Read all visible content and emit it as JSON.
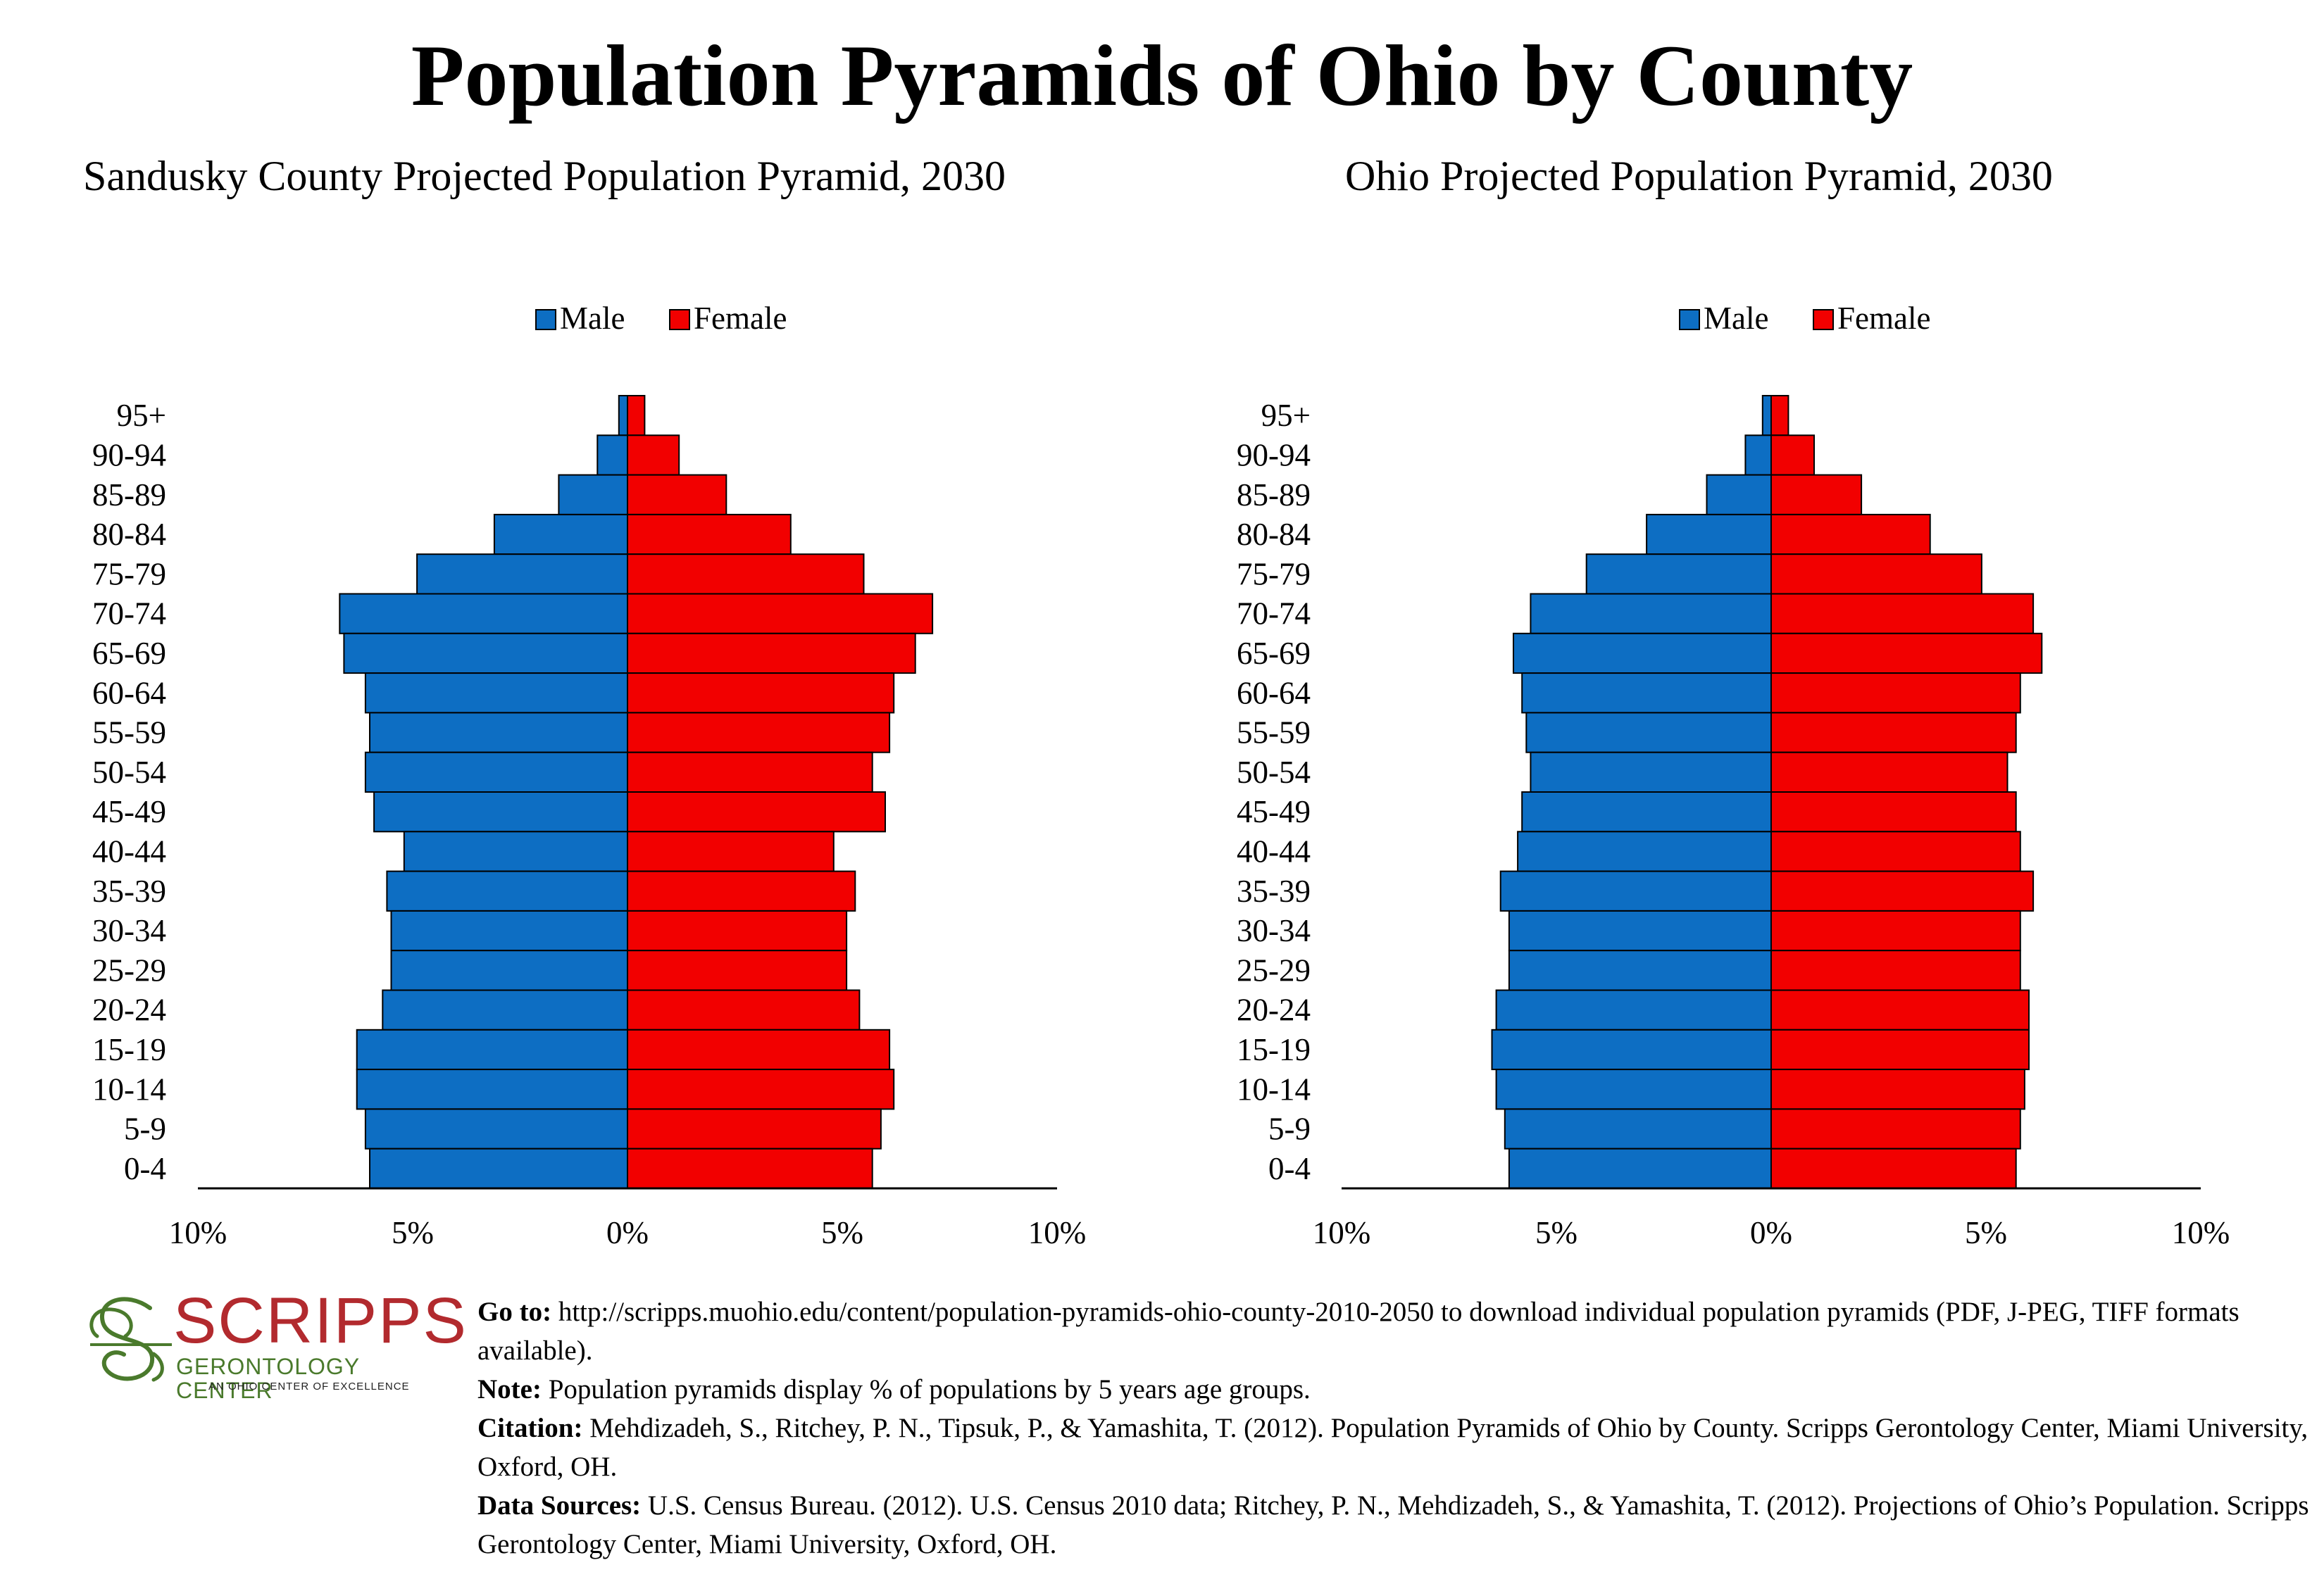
{
  "title": "Population Pyramids of Ohio by County",
  "colors": {
    "male": "#0d6ec3",
    "female": "#f20000",
    "logo_red": "#b22a2e",
    "logo_green": "#4a7a2c"
  },
  "chart_data": [
    {
      "type": "bar",
      "orientation": "horizontal-pyramid",
      "title": "Sandusky County Projected Population Pyramid, 2030",
      "legend": {
        "placement": "top-center",
        "entries": [
          "Male",
          "Female"
        ]
      },
      "categories": [
        "95+",
        "90-94",
        "85-89",
        "80-84",
        "75-79",
        "70-74",
        "65-69",
        "60-64",
        "55-59",
        "50-54",
        "45-49",
        "40-44",
        "35-39",
        "30-34",
        "25-29",
        "20-24",
        "15-19",
        "10-14",
        "5-9",
        "0-4"
      ],
      "series": [
        {
          "name": "Male",
          "values": [
            0.2,
            0.7,
            1.6,
            3.1,
            4.9,
            6.7,
            6.6,
            6.1,
            6.0,
            6.1,
            5.9,
            5.2,
            5.6,
            5.5,
            5.5,
            5.7,
            6.3,
            6.3,
            6.1,
            6.0
          ]
        },
        {
          "name": "Female",
          "values": [
            0.4,
            1.2,
            2.3,
            3.8,
            5.5,
            7.1,
            6.7,
            6.2,
            6.1,
            5.7,
            6.0,
            4.8,
            5.3,
            5.1,
            5.1,
            5.4,
            6.1,
            6.2,
            5.9,
            5.7
          ]
        }
      ],
      "xlim": [
        -10,
        10
      ],
      "xticks": [
        "10%",
        "5%",
        "0%",
        "5%",
        "10%"
      ],
      "grid": false
    },
    {
      "type": "bar",
      "orientation": "horizontal-pyramid",
      "title": "Ohio Projected Population Pyramid, 2030",
      "legend": {
        "placement": "top-center",
        "entries": [
          "Male",
          "Female"
        ]
      },
      "categories": [
        "95+",
        "90-94",
        "85-89",
        "80-84",
        "75-79",
        "70-74",
        "65-69",
        "60-64",
        "55-59",
        "50-54",
        "45-49",
        "40-44",
        "35-39",
        "30-34",
        "25-29",
        "20-24",
        "15-19",
        "10-14",
        "5-9",
        "0-4"
      ],
      "series": [
        {
          "name": "Male",
          "values": [
            0.2,
            0.6,
            1.5,
            2.9,
            4.3,
            5.6,
            6.0,
            5.8,
            5.7,
            5.6,
            5.8,
            5.9,
            6.3,
            6.1,
            6.1,
            6.4,
            6.5,
            6.4,
            6.2,
            6.1
          ]
        },
        {
          "name": "Female",
          "values": [
            0.4,
            1.0,
            2.1,
            3.7,
            4.9,
            6.1,
            6.3,
            5.8,
            5.7,
            5.5,
            5.7,
            5.8,
            6.1,
            5.8,
            5.8,
            6.0,
            6.0,
            5.9,
            5.8,
            5.7
          ]
        }
      ],
      "xlim": [
        -10,
        10
      ],
      "xticks": [
        "10%",
        "5%",
        "0%",
        "5%",
        "10%"
      ],
      "grid": false
    }
  ],
  "logo": {
    "word": "SCRIPPS",
    "line1": "GERONTOLOGY CENTER",
    "line2": "AN OHIO CENTER OF EXCELLENCE"
  },
  "footer": {
    "goto_label": "Go to:",
    "goto_text": " http://scripps.muohio.edu/content/population-pyramids-ohio-county-2010-2050 to download individual population pyramids (PDF, J-PEG, TIFF formats available).",
    "note_label": "Note:",
    "note_text": " Population pyramids display % of populations by 5 years age groups.",
    "citation_label": "Citation:",
    "citation_text": " Mehdizadeh, S., Ritchey, P. N., Tipsuk, P., & Yamashita, T. (2012). Population Pyramids of Ohio by County. Scripps Gerontology Center, Miami University, Oxford, OH.",
    "sources_label": "Data Sources:",
    "sources_text": " U.S. Census Bureau. (2012). U.S. Census 2010 data; Ritchey, P. N., Mehdizadeh, S., & Yamashita, T. (2012). Projections of Ohio’s Population. Scripps Gerontology Center, Miami University, Oxford, OH."
  }
}
